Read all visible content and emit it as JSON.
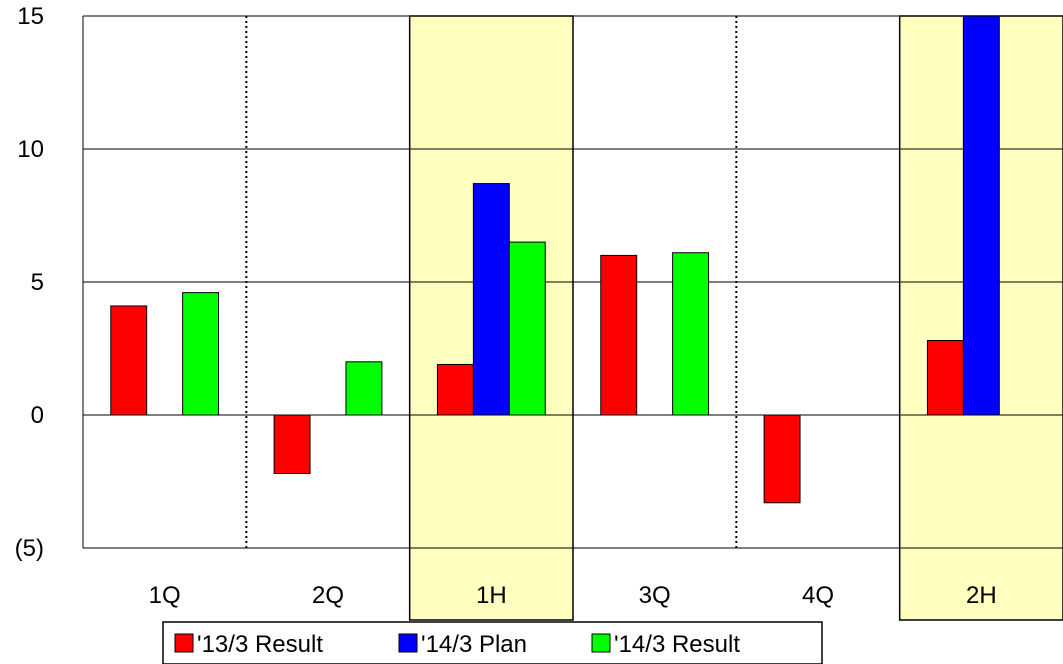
{
  "chart_data": {
    "type": "bar",
    "categories": [
      "1Q",
      "2Q",
      "1H",
      "3Q",
      "4Q",
      "2H"
    ],
    "highlighted_categories": [
      "1H",
      "2H"
    ],
    "series": [
      {
        "name": "'13/3 Result",
        "color": "#ff0000",
        "values": [
          4.1,
          -2.2,
          1.9,
          6.0,
          -3.3,
          2.8
        ]
      },
      {
        "name": "'14/3 Plan",
        "color": "#0000ff",
        "values": [
          null,
          null,
          8.7,
          null,
          null,
          15.0
        ]
      },
      {
        "name": "'14/3 Result",
        "color": "#00ff00",
        "values": [
          4.6,
          2.0,
          6.5,
          6.1,
          null,
          null
        ]
      }
    ],
    "ylim": [
      -5,
      15
    ],
    "yticks": [
      {
        "value": 15,
        "label": "15"
      },
      {
        "value": 10,
        "label": "10"
      },
      {
        "value": 5,
        "label": "5"
      },
      {
        "value": 0,
        "label": "0"
      },
      {
        "value": -5,
        "label": "(5)"
      }
    ],
    "highlight_color": "#ffffc0",
    "grid": true,
    "legend_position": "bottom-center"
  }
}
